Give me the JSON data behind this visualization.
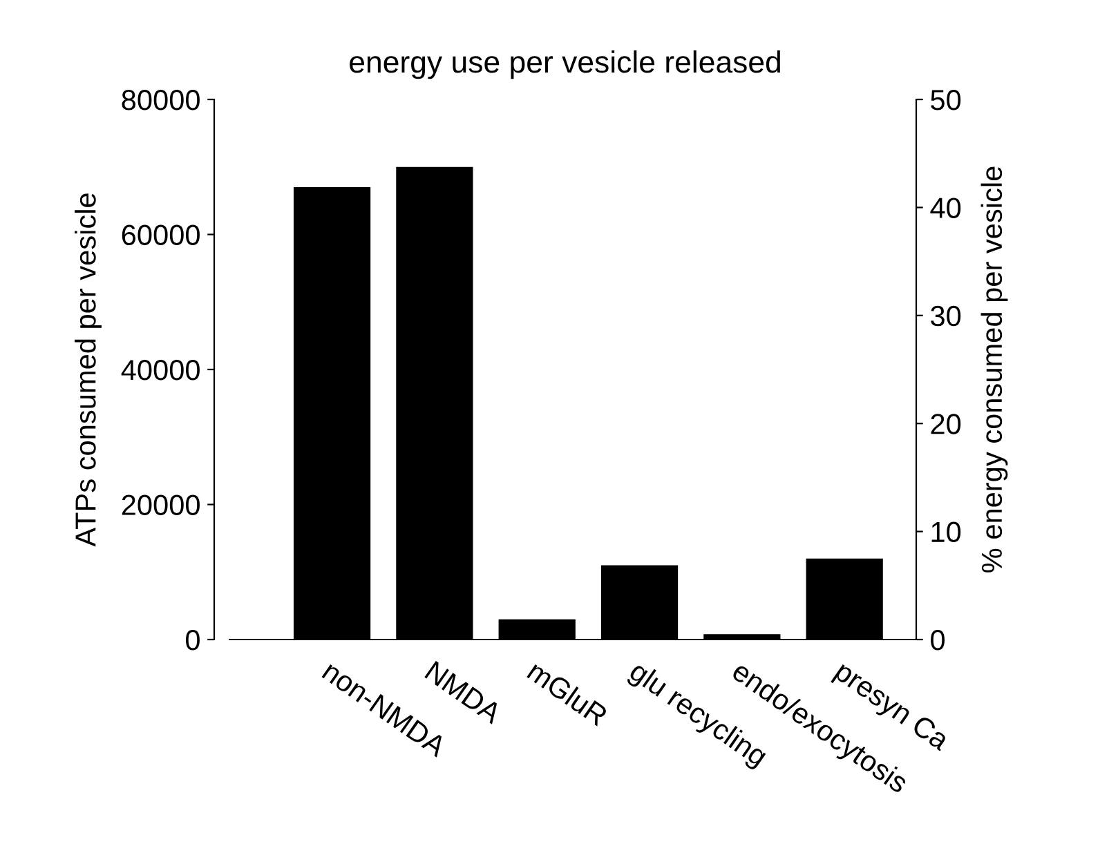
{
  "chart_data": {
    "type": "bar",
    "title": "energy use per vesicle released",
    "categories": [
      "non-NMDA",
      "NMDA",
      "mGluR",
      "glu recycling",
      "endo/exocytosis",
      "presyn Ca"
    ],
    "series": [
      {
        "color": "#000000",
        "values": [
          67000,
          70000,
          3000,
          11000,
          800,
          12000
        ]
      }
    ],
    "ylabel": "ATPs consumed per vesicle",
    "y2label": "% energy consumed per vesicle",
    "ylim": [
      0,
      80000
    ],
    "yticks": [
      0,
      20000,
      40000,
      60000,
      80000
    ],
    "y2lim": [
      0,
      50
    ],
    "y2ticks": [
      0,
      10,
      20,
      30,
      40,
      50
    ],
    "grid": false
  }
}
